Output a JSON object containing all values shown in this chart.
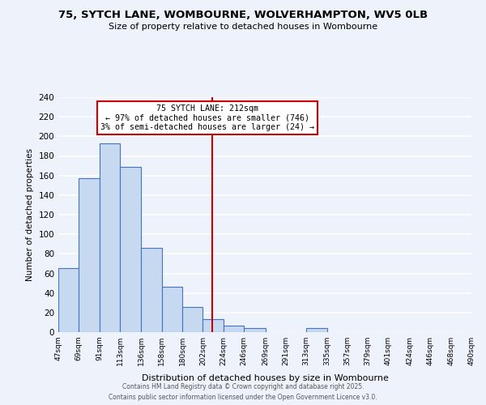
{
  "title": "75, SYTCH LANE, WOMBOURNE, WOLVERHAMPTON, WV5 0LB",
  "subtitle": "Size of property relative to detached houses in Wombourne",
  "xlabel": "Distribution of detached houses by size in Wombourne",
  "ylabel": "Number of detached properties",
  "bar_edges": [
    47,
    69,
    91,
    113,
    136,
    158,
    180,
    202,
    224,
    246,
    269,
    291,
    313,
    335,
    357,
    379,
    401,
    424,
    446,
    468,
    490
  ],
  "bar_heights": [
    65,
    157,
    193,
    169,
    86,
    46,
    26,
    13,
    7,
    4,
    0,
    0,
    4,
    0,
    0,
    0,
    0,
    0,
    0,
    0
  ],
  "bar_color": "#c6d9f0",
  "bar_edge_color": "#4472c4",
  "vline_x": 212,
  "vline_color": "#cc0000",
  "annotation_title": "75 SYTCH LANE: 212sqm",
  "annotation_line1": "← 97% of detached houses are smaller (746)",
  "annotation_line2": "3% of semi-detached houses are larger (24) →",
  "annotation_box_color": "#ffffff",
  "annotation_box_edge": "#cc0000",
  "ylim": [
    0,
    240
  ],
  "yticks": [
    0,
    20,
    40,
    60,
    80,
    100,
    120,
    140,
    160,
    180,
    200,
    220,
    240
  ],
  "xtick_labels": [
    "47sqm",
    "69sqm",
    "91sqm",
    "113sqm",
    "136sqm",
    "158sqm",
    "180sqm",
    "202sqm",
    "224sqm",
    "246sqm",
    "269sqm",
    "291sqm",
    "313sqm",
    "335sqm",
    "357sqm",
    "379sqm",
    "401sqm",
    "424sqm",
    "446sqm",
    "468sqm",
    "490sqm"
  ],
  "background_color": "#eef2fb",
  "grid_color": "#ffffff",
  "footer1": "Contains HM Land Registry data © Crown copyright and database right 2025.",
  "footer2": "Contains public sector information licensed under the Open Government Licence v3.0."
}
